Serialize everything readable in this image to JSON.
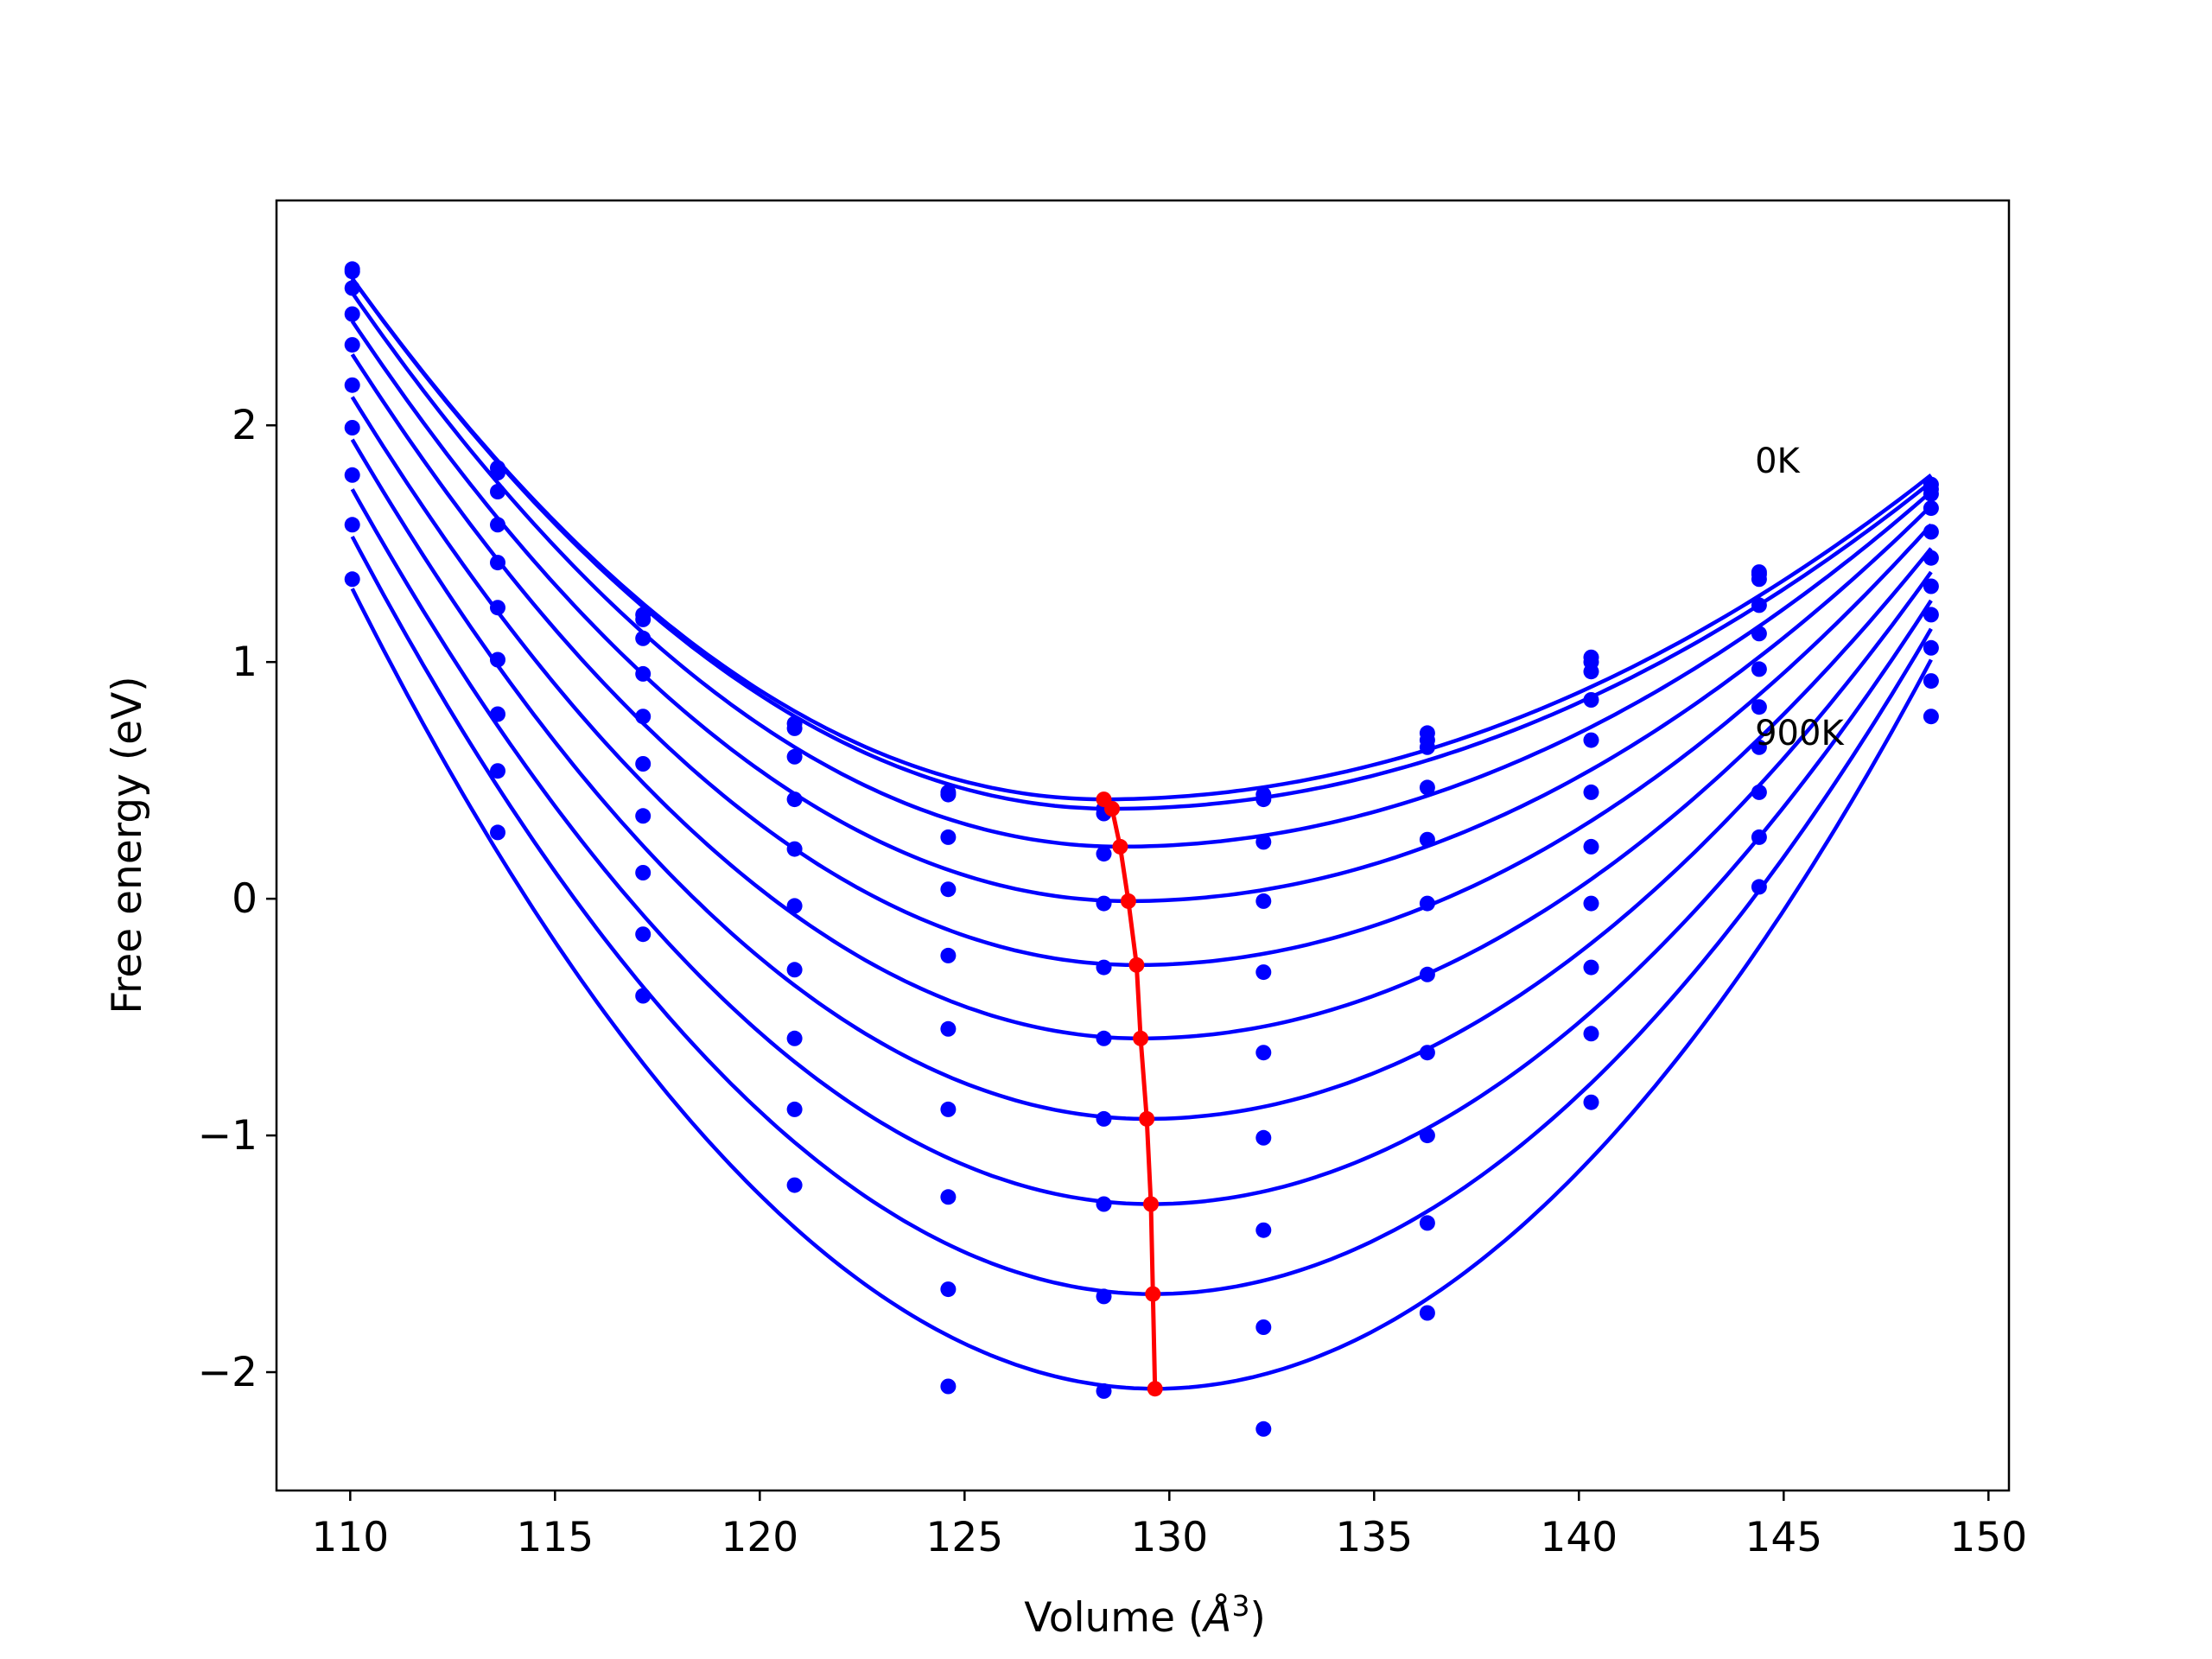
{
  "colors": {
    "curves": "#0000ff",
    "points": "#0000ff",
    "minimum_line": "#ff0000",
    "axes": "#000000"
  },
  "chart_data": {
    "type": "line",
    "title": "",
    "xlabel": "Volume (Å³)",
    "xlabel_main": "Volume (",
    "xlabel_unit": "Å",
    "xlabel_exp": "3",
    "xlabel_close": ")",
    "ylabel": "Free energy (eV)",
    "xlim": [
      108.2,
      150.5
    ],
    "ylim": [
      -2.5,
      2.95
    ],
    "grid": false,
    "legend": "none",
    "xticks": [
      110,
      115,
      120,
      125,
      130,
      135,
      140,
      145,
      150
    ],
    "xtick_labels": [
      "110",
      "115",
      "120",
      "125",
      "130",
      "135",
      "140",
      "145",
      "150"
    ],
    "yticks": [
      -2,
      -1,
      0,
      1,
      2
    ],
    "ytick_labels": [
      "−2",
      "−1",
      "0",
      "1",
      "2"
    ],
    "annotations": [
      {
        "text": "0K",
        "x": 144.3,
        "y": 1.8
      },
      {
        "text": "900K",
        "x": 144.3,
        "y": 0.65
      }
    ],
    "volumes": [
      110.05,
      113.6,
      117.15,
      120.85,
      124.6,
      128.4,
      132.3,
      136.3,
      140.3,
      144.4,
      148.6
    ],
    "series": [
      {
        "values": [
          2.65,
          1.8,
          1.18,
          0.72,
          0.45,
          0.38,
          0.44,
          0.67,
          1.0,
          1.37,
          1.75
        ]
      },
      {
        "values": [
          2.66,
          1.82,
          1.2,
          0.74,
          0.44,
          0.36,
          0.42,
          0.7,
          1.02,
          1.38,
          1.73
        ]
      },
      {
        "values": [
          2.58,
          1.72,
          1.1,
          0.6,
          0.26,
          0.19,
          0.24,
          0.64,
          0.96,
          1.35,
          1.71
        ]
      },
      {
        "values": [
          2.47,
          1.58,
          0.95,
          0.42,
          0.04,
          -0.02,
          -0.01,
          0.47,
          0.84,
          1.24,
          1.65
        ]
      },
      {
        "values": [
          2.34,
          1.42,
          0.77,
          0.21,
          -0.24,
          -0.29,
          -0.31,
          0.25,
          0.67,
          1.12,
          1.55
        ]
      },
      {
        "values": [
          2.17,
          1.23,
          0.57,
          -0.03,
          -0.55,
          -0.59,
          -0.65,
          -0.02,
          0.45,
          0.97,
          1.44
        ]
      },
      {
        "values": [
          1.99,
          1.01,
          0.35,
          -0.3,
          -0.89,
          -0.93,
          -1.01,
          -0.32,
          0.22,
          0.81,
          1.32
        ]
      },
      {
        "values": [
          1.79,
          0.78,
          0.11,
          -0.59,
          -1.26,
          -1.29,
          -1.4,
          -0.65,
          -0.02,
          0.64,
          1.2
        ]
      },
      {
        "values": [
          1.58,
          0.54,
          -0.15,
          -0.89,
          -1.65,
          -1.68,
          -1.81,
          -1.0,
          -0.29,
          0.45,
          1.06
        ]
      },
      {
        "values": [
          1.35,
          0.28,
          -0.41,
          -1.21,
          -2.06,
          -2.08,
          -2.24,
          -1.37,
          -0.57,
          0.26,
          0.92
        ]
      },
      {
        "values": [
          null,
          null,
          null,
          null,
          null,
          null,
          null,
          -1.75,
          -0.86,
          0.05,
          0.77
        ]
      }
    ],
    "fit_curves": [
      {
        "vmin": 128.4,
        "fmin": 0.42,
        "left": 2.62,
        "right": 1.79
      },
      {
        "vmin": 128.6,
        "fmin": 0.38,
        "left": 2.62,
        "right": 1.76
      },
      {
        "vmin": 128.8,
        "fmin": 0.22,
        "left": 2.56,
        "right": 1.72
      },
      {
        "vmin": 129.0,
        "fmin": -0.01,
        "left": 2.44,
        "right": 1.66
      },
      {
        "vmin": 129.2,
        "fmin": -0.28,
        "left": 2.3,
        "right": 1.58
      },
      {
        "vmin": 129.3,
        "fmin": -0.59,
        "left": 2.12,
        "right": 1.48
      },
      {
        "vmin": 129.45,
        "fmin": -0.93,
        "left": 1.94,
        "right": 1.38
      },
      {
        "vmin": 129.55,
        "fmin": -1.29,
        "left": 1.73,
        "right": 1.26
      },
      {
        "vmin": 129.6,
        "fmin": -1.67,
        "left": 1.53,
        "right": 1.14
      },
      {
        "vmin": 129.65,
        "fmin": -2.07,
        "left": 1.31,
        "right": 1.01
      }
    ],
    "minimum_line": {
      "x": [
        128.4,
        128.6,
        128.8,
        129.0,
        129.2,
        129.3,
        129.45,
        129.55,
        129.6,
        129.65
      ],
      "y": [
        0.42,
        0.38,
        0.22,
        -0.01,
        -0.28,
        -0.59,
        -0.93,
        -1.29,
        -1.67,
        -2.07
      ]
    }
  }
}
